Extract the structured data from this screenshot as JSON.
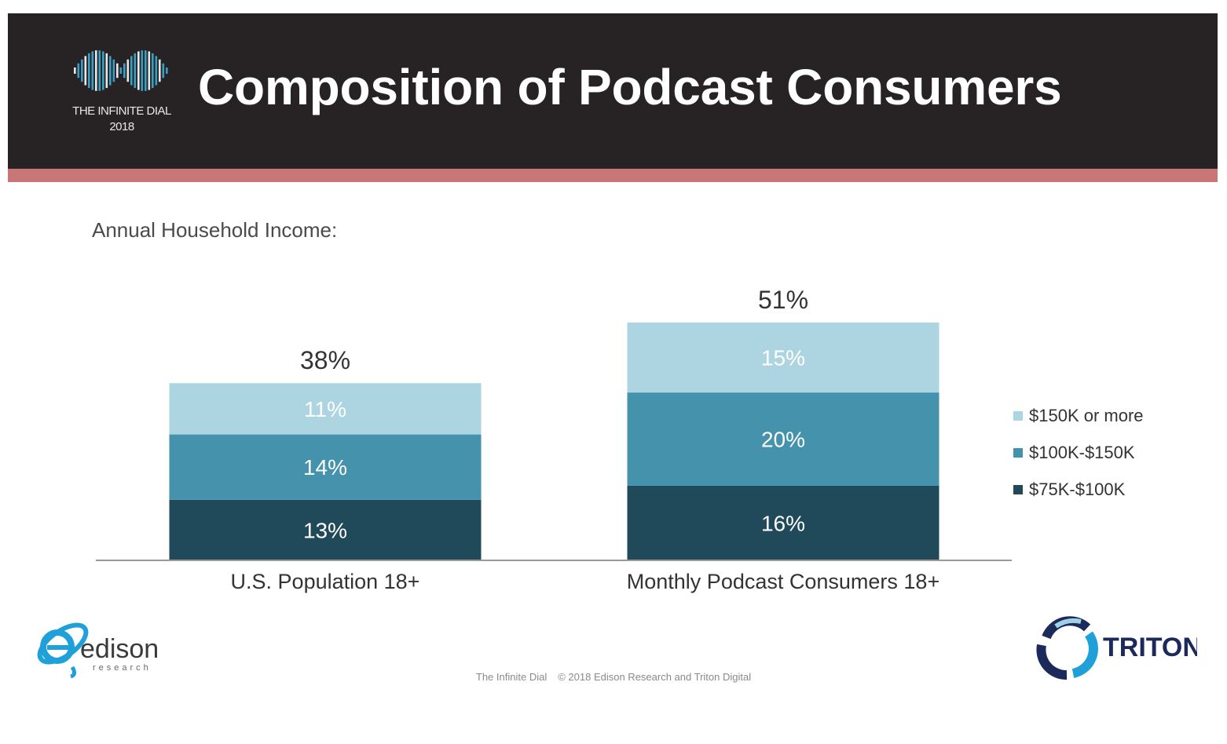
{
  "header": {
    "title": "Composition of Podcast Consumers",
    "logo_line1": "THE INFINITE DIAL",
    "logo_line2": "2018",
    "background": "#272324",
    "stripe_color": "#c87676"
  },
  "chart_data": {
    "type": "bar",
    "stacked": true,
    "subtitle": "Annual Household Income:",
    "categories": [
      "U.S. Population 18+",
      "Monthly Podcast Consumers 18+"
    ],
    "series": [
      {
        "name": "$75K-$100K",
        "values": [
          13,
          16
        ],
        "color": "#204a5a",
        "labels": [
          "13%",
          "16%"
        ]
      },
      {
        "name": "$100K-$150K",
        "values": [
          14,
          20
        ],
        "color": "#4592ad",
        "labels": [
          "14%",
          "20%"
        ]
      },
      {
        "name": "$150K or more",
        "values": [
          11,
          15
        ],
        "color": "#add5e1",
        "labels": [
          "11%",
          "15%"
        ]
      }
    ],
    "totals": [
      38,
      51
    ],
    "total_labels": [
      "38%",
      "51%"
    ],
    "legend": {
      "position": "right",
      "order": [
        "$150K or more",
        "$100K-$150K",
        "$75K-$100K"
      ]
    },
    "grid": false,
    "ylim": [
      0,
      51
    ]
  },
  "logos": {
    "edison_name": "edison",
    "edison_sub": "research",
    "edison_icon": "edison-logo-icon",
    "triton_name": "TRITON",
    "triton_icon": "triton-logo-icon",
    "infinite_icon": "infinity-logo-icon"
  },
  "footer": {
    "left": "The Infinite Dial",
    "right": "© 2018 Edison Research and Triton Digital"
  }
}
